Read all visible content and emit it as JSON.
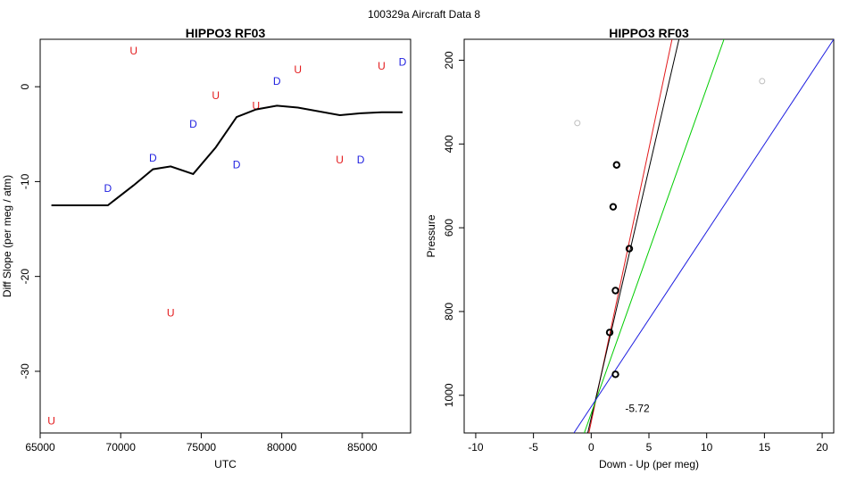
{
  "figure": {
    "title": "100329a   Aircraft Data 8"
  },
  "chart_data": [
    {
      "type": "scatter",
      "title": "HIPPO3 RF03",
      "xlabel": "UTC",
      "ylabel": "Diff Slope (per meg / atm)",
      "xlim": [
        65000,
        88000
      ],
      "ylim": [
        -36.5,
        5
      ],
      "xticks": [
        65000,
        70000,
        75000,
        80000,
        85000
      ],
      "xtick_labels": [
        "65000",
        "70000",
        "75000",
        "80000",
        "85000"
      ],
      "yticks": [
        -30,
        -20,
        -10,
        0
      ],
      "ytick_labels": [
        "-30",
        "-20",
        "-10",
        "0"
      ],
      "grid": false,
      "legend": "none",
      "colors": {
        "U": "#e31a1c",
        "D": "#1f1fe0",
        "line": "#000000"
      },
      "series": [
        {
          "marker": "U",
          "color": "#e31a1c",
          "points": [
            [
              65700,
              -35.3
            ],
            [
              70800,
              3.7
            ],
            [
              73100,
              -23.9
            ],
            [
              75900,
              -1.0
            ],
            [
              78400,
              -2.1
            ],
            [
              81000,
              1.7
            ],
            [
              83600,
              -7.8
            ],
            [
              86200,
              2.1
            ]
          ]
        },
        {
          "marker": "D",
          "color": "#1f1fe0",
          "points": [
            [
              69200,
              -10.8
            ],
            [
              72000,
              -7.6
            ],
            [
              74500,
              -4.0
            ],
            [
              77200,
              -8.3
            ],
            [
              79700,
              0.5
            ],
            [
              84900,
              -7.8
            ],
            [
              87500,
              2.5
            ]
          ]
        },
        {
          "type": "line",
          "color": "#000000",
          "points": [
            [
              65700,
              -12.5
            ],
            [
              69200,
              -12.5
            ],
            [
              70800,
              -10.4
            ],
            [
              72000,
              -8.7
            ],
            [
              73100,
              -8.4
            ],
            [
              74500,
              -9.2
            ],
            [
              75900,
              -6.4
            ],
            [
              77200,
              -3.2
            ],
            [
              78400,
              -2.4
            ],
            [
              79700,
              -2.0
            ],
            [
              81000,
              -2.2
            ],
            [
              83600,
              -3.0
            ],
            [
              84900,
              -2.8
            ],
            [
              86200,
              -2.7
            ],
            [
              87500,
              -2.7
            ]
          ]
        }
      ]
    },
    {
      "type": "scatter",
      "title": "HIPPO3 RF03",
      "xlabel": "Down - Up (per meg)",
      "ylabel": "Pressure",
      "xlim": [
        -11,
        21
      ],
      "ylim": [
        1090,
        150
      ],
      "y_reversed": true,
      "xticks": [
        -10,
        -5,
        0,
        5,
        10,
        15,
        20
      ],
      "xtick_labels": [
        "-10",
        "-5",
        "0",
        "5",
        "10",
        "15",
        "20"
      ],
      "yticks": [
        200,
        400,
        600,
        800,
        1000
      ],
      "ytick_labels": [
        "200",
        "400",
        "600",
        "800",
        "1000"
      ],
      "grid": false,
      "legend": "none",
      "annotation": {
        "text": "-5.72",
        "x": 4.0,
        "y": 1040
      },
      "points": [
        {
          "x": 2.2,
          "y": 450,
          "color": "#000000"
        },
        {
          "x": 1.9,
          "y": 550,
          "color": "#000000"
        },
        {
          "x": 3.3,
          "y": 650,
          "color": "#000000"
        },
        {
          "x": 2.1,
          "y": 750,
          "color": "#000000"
        },
        {
          "x": 1.6,
          "y": 850,
          "color": "#000000"
        },
        {
          "x": 2.1,
          "y": 950,
          "color": "#000000"
        },
        {
          "x": -1.2,
          "y": 350,
          "color": "#bdbdbd"
        },
        {
          "x": 14.8,
          "y": 250,
          "color": "#bdbdbd"
        }
      ],
      "lines": [
        {
          "color": "#e31a1c",
          "from": [
            -0.2,
            1090
          ],
          "to": [
            7.0,
            150
          ]
        },
        {
          "color": "#000000",
          "from": [
            -0.3,
            1090
          ],
          "to": [
            7.6,
            150
          ]
        },
        {
          "color": "#00cc00",
          "from": [
            -0.6,
            1090
          ],
          "to": [
            11.5,
            150
          ]
        },
        {
          "color": "#1f1fe0",
          "from": [
            -1.5,
            1090
          ],
          "to": [
            21.0,
            150
          ]
        }
      ]
    }
  ]
}
